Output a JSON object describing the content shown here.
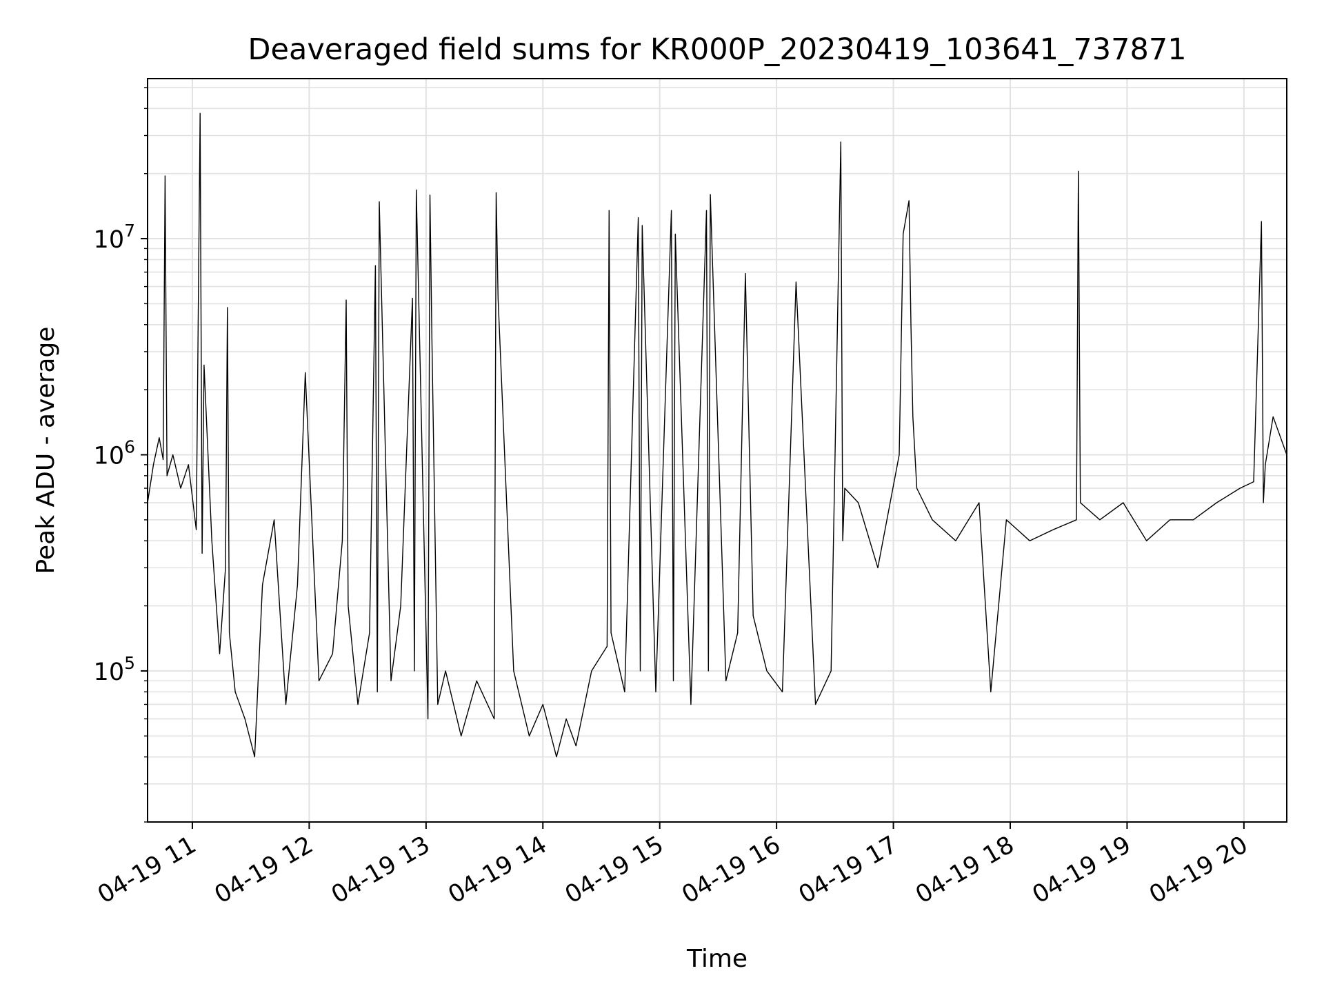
{
  "chart_data": {
    "type": "line",
    "title": "Deaveraged field sums for KR000P_20230419_103641_737871",
    "xlabel": "Time",
    "ylabel": "Peak ADU - average",
    "yscale": "log",
    "ylim": [
      20000,
      55000000
    ],
    "xlim": [
      "2023-04-19T10:37",
      "2023-04-19T20:22"
    ],
    "grid": true,
    "x_ticks": [
      {
        "value": "2023-04-19T11:00",
        "label": "04-19 11"
      },
      {
        "value": "2023-04-19T12:00",
        "label": "04-19 12"
      },
      {
        "value": "2023-04-19T13:00",
        "label": "04-19 13"
      },
      {
        "value": "2023-04-19T14:00",
        "label": "04-19 14"
      },
      {
        "value": "2023-04-19T15:00",
        "label": "04-19 15"
      },
      {
        "value": "2023-04-19T16:00",
        "label": "04-19 16"
      },
      {
        "value": "2023-04-19T17:00",
        "label": "04-19 17"
      },
      {
        "value": "2023-04-19T18:00",
        "label": "04-19 18"
      },
      {
        "value": "2023-04-19T19:00",
        "label": "04-19 19"
      },
      {
        "value": "2023-04-19T20:00",
        "label": "04-19 20"
      }
    ],
    "y_ticks": [
      {
        "value": 100000,
        "base": "10",
        "exp": "5"
      },
      {
        "value": 1000000,
        "base": "10",
        "exp": "6"
      },
      {
        "value": 10000000,
        "base": "10",
        "exp": "7"
      }
    ],
    "line_color": "#000000",
    "series": [
      {
        "x": [
          "2023-04-19T10:37",
          "2023-04-19T10:40",
          "2023-04-19T10:43",
          "2023-04-19T10:45",
          "2023-04-19T10:46",
          "2023-04-19T10:47",
          "2023-04-19T10:50",
          "2023-04-19T10:54",
          "2023-04-19T10:58",
          "2023-04-19T11:02",
          "2023-04-19T11:04",
          "2023-04-19T11:05",
          "2023-04-19T11:06",
          "2023-04-19T11:10",
          "2023-04-19T11:14",
          "2023-04-19T11:17",
          "2023-04-19T11:18",
          "2023-04-19T11:19",
          "2023-04-19T11:22",
          "2023-04-19T11:27",
          "2023-04-19T11:32",
          "2023-04-19T11:36",
          "2023-04-19T11:42",
          "2023-04-19T11:48",
          "2023-04-19T11:54",
          "2023-04-19T11:58",
          "2023-04-19T12:05",
          "2023-04-19T12:12",
          "2023-04-19T12:17",
          "2023-04-19T12:19",
          "2023-04-19T12:20",
          "2023-04-19T12:25",
          "2023-04-19T12:31",
          "2023-04-19T12:34",
          "2023-04-19T12:35",
          "2023-04-19T12:36",
          "2023-04-19T12:42",
          "2023-04-19T12:47",
          "2023-04-19T12:53",
          "2023-04-19T12:54",
          "2023-04-19T12:55",
          "2023-04-19T13:01",
          "2023-04-19T13:02",
          "2023-04-19T13:03",
          "2023-04-19T13:06",
          "2023-04-19T13:10",
          "2023-04-19T13:18",
          "2023-04-19T13:26",
          "2023-04-19T13:35",
          "2023-04-19T13:36",
          "2023-04-19T13:37",
          "2023-04-19T13:45",
          "2023-04-19T13:53",
          "2023-04-19T14:00",
          "2023-04-19T14:07",
          "2023-04-19T14:12",
          "2023-04-19T14:17",
          "2023-04-19T14:25",
          "2023-04-19T14:33",
          "2023-04-19T14:34",
          "2023-04-19T14:35",
          "2023-04-19T14:42",
          "2023-04-19T14:49",
          "2023-04-19T14:50",
          "2023-04-19T14:51",
          "2023-04-19T14:58",
          "2023-04-19T15:06",
          "2023-04-19T15:07",
          "2023-04-19T15:08",
          "2023-04-19T15:16",
          "2023-04-19T15:24",
          "2023-04-19T15:25",
          "2023-04-19T15:26",
          "2023-04-19T15:34",
          "2023-04-19T15:40",
          "2023-04-19T15:44",
          "2023-04-19T15:48",
          "2023-04-19T15:55",
          "2023-04-19T16:03",
          "2023-04-19T16:10",
          "2023-04-19T16:20",
          "2023-04-19T16:28",
          "2023-04-19T16:33",
          "2023-04-19T16:34",
          "2023-04-19T16:35",
          "2023-04-19T16:42",
          "2023-04-19T16:52",
          "2023-04-19T17:03",
          "2023-04-19T17:05",
          "2023-04-19T17:08",
          "2023-04-19T17:09",
          "2023-04-19T17:10",
          "2023-04-19T17:12",
          "2023-04-19T17:20",
          "2023-04-19T17:32",
          "2023-04-19T17:44",
          "2023-04-19T17:50",
          "2023-04-19T17:58",
          "2023-04-19T18:10",
          "2023-04-19T18:22",
          "2023-04-19T18:34",
          "2023-04-19T18:35",
          "2023-04-19T18:36",
          "2023-04-19T18:46",
          "2023-04-19T18:58",
          "2023-04-19T19:10",
          "2023-04-19T19:22",
          "2023-04-19T19:34",
          "2023-04-19T19:46",
          "2023-04-19T19:58",
          "2023-04-19T20:05",
          "2023-04-19T20:09",
          "2023-04-19T20:10",
          "2023-04-19T20:11",
          "2023-04-19T20:15",
          "2023-04-19T20:22"
        ],
        "y": [
          600000,
          900000,
          1200000,
          950000,
          19500000,
          800000,
          1000000,
          700000,
          900000,
          450000,
          38000000,
          350000,
          2600000,
          400000,
          120000,
          300000,
          4800000,
          150000,
          80000,
          60000,
          40000,
          250000,
          500000,
          70000,
          250000,
          2400000,
          90000,
          120000,
          400000,
          5200000,
          200000,
          70000,
          150000,
          7500000,
          80000,
          14800000,
          90000,
          200000,
          5300000,
          100000,
          16800000,
          60000,
          15900000,
          3500000,
          70000,
          100000,
          50000,
          90000,
          60000,
          16300000,
          5300000,
          100000,
          50000,
          70000,
          40000,
          60000,
          45000,
          100000,
          130000,
          13500000,
          150000,
          80000,
          12500000,
          100000,
          11500000,
          80000,
          13500000,
          90000,
          10500000,
          70000,
          13500000,
          100000,
          16000000,
          90000,
          150000,
          6900000,
          180000,
          100000,
          80000,
          6300000,
          70000,
          100000,
          28000000,
          400000,
          700000,
          600000,
          300000,
          1000000,
          10500000,
          15000000,
          4000000,
          1500000,
          700000,
          500000,
          400000,
          600000,
          80000,
          500000,
          400000,
          450000,
          500000,
          20500000,
          600000,
          500000,
          600000,
          400000,
          500000,
          500000,
          600000,
          700000,
          750000,
          12000000,
          600000,
          900000,
          1500000,
          1000000
        ]
      }
    ]
  }
}
